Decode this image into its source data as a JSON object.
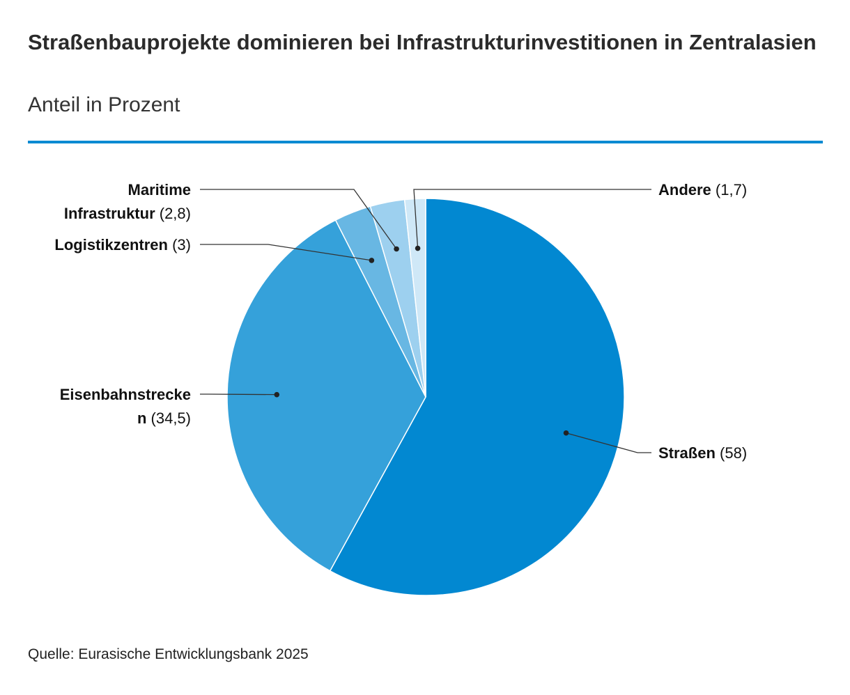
{
  "title": "Straßenbauprojekte dominieren bei Infrastrukturinvestitionen in Zentralasien",
  "subtitle": "Anteil in Prozent",
  "source": "Quelle: Eurasische Entwicklungsbank 2025",
  "chart_data": {
    "type": "pie",
    "title": "Straßenbauprojekte dominieren bei Infrastrukturinvestitionen in Zentralasien",
    "subtitle": "Anteil in Prozent",
    "start": "12 o'clock",
    "direction": "clockwise",
    "slices": [
      {
        "name": "Straßen",
        "value": 58,
        "value_label": "(58)",
        "color": "#0288d1"
      },
      {
        "name": "Eisenbahnstrecke n",
        "name_lines": [
          "Eisenbahnstrecke",
          "n"
        ],
        "value": 34.5,
        "value_label": "(34,5)",
        "color": "#35a1da"
      },
      {
        "name": "Logistikzentren",
        "value": 3,
        "value_label": "(3)",
        "color": "#68b7e3"
      },
      {
        "name": "Maritime Infrastruktur",
        "name_lines": [
          "Maritime",
          "Infrastruktur"
        ],
        "value": 2.8,
        "value_label": "(2,8)",
        "color": "#9dd0ef"
      },
      {
        "name": "Andere",
        "value": 1.7,
        "value_label": "(1,7)",
        "color": "#cfe8f7"
      }
    ]
  }
}
